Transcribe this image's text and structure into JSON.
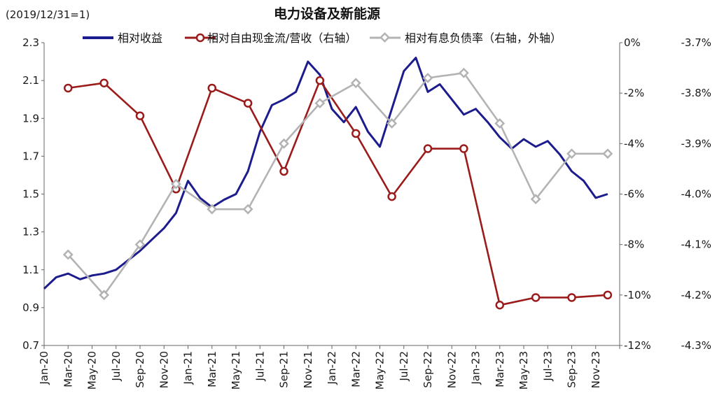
{
  "chart_data": {
    "type": "line",
    "title": "电力设备及新能源",
    "subtitle": "(2019/12/31=1)",
    "left_axis": {
      "ylim": [
        0.7,
        2.3
      ],
      "ticks": [
        0.7,
        0.9,
        1.1,
        1.3,
        1.5,
        1.7,
        1.9,
        2.1,
        2.3
      ]
    },
    "right_axis": {
      "ylim": [
        -12,
        0
      ],
      "ticks": [
        -12,
        -10,
        -8,
        -6,
        -4,
        -2,
        0
      ],
      "tick_labels": [
        "-12%",
        "-10%",
        "-8%",
        "-6%",
        "-4%",
        "-2%",
        "0%"
      ]
    },
    "outer_axis": {
      "ylim": [
        -4.3,
        -3.7
      ],
      "ticks": [
        -4.3,
        -4.2,
        -4.1,
        -4.0,
        -3.9,
        -3.8,
        -3.7
      ],
      "tick_labels": [
        "-4.3%",
        "-4.2%",
        "-4.1%",
        "-4.0%",
        "-3.9%",
        "-3.8%",
        "-3.7%"
      ]
    },
    "x_axis": {
      "range": [
        "2020-01",
        "2024-01"
      ],
      "tick_labels": [
        "Jan-20",
        "Mar-20",
        "May-20",
        "Jul-20",
        "Sep-20",
        "Nov-20",
        "Jan-21",
        "Mar-21",
        "May-21",
        "Jul-21",
        "Sep-21",
        "Nov-21",
        "Jan-22",
        "Mar-22",
        "May-22",
        "Jul-22",
        "Sep-22",
        "Nov-22",
        "Jan-23",
        "Mar-23",
        "May-23",
        "Jul-23",
        "Sep-23",
        "Nov-23"
      ]
    },
    "grid": false,
    "legend_position": "top",
    "series": [
      {
        "name": "相对收益",
        "axis": "left",
        "color": "#1c1c8e",
        "x": [
          "2020-01",
          "2020-02",
          "2020-03",
          "2020-04",
          "2020-05",
          "2020-06",
          "2020-07",
          "2020-08",
          "2020-09",
          "2020-10",
          "2020-11",
          "2020-12",
          "2021-01",
          "2021-02",
          "2021-03",
          "2021-04",
          "2021-05",
          "2021-06",
          "2021-07",
          "2021-08",
          "2021-09",
          "2021-10",
          "2021-11",
          "2021-12",
          "2022-01",
          "2022-02",
          "2022-03",
          "2022-04",
          "2022-05",
          "2022-06",
          "2022-07",
          "2022-08",
          "2022-09",
          "2022-10",
          "2022-11",
          "2022-12",
          "2023-01",
          "2023-02",
          "2023-03",
          "2023-04",
          "2023-05",
          "2023-06",
          "2023-07",
          "2023-08",
          "2023-09",
          "2023-10",
          "2023-11",
          "2023-12"
        ],
        "values": [
          1.0,
          1.06,
          1.08,
          1.05,
          1.07,
          1.08,
          1.1,
          1.15,
          1.2,
          1.26,
          1.32,
          1.4,
          1.57,
          1.48,
          1.43,
          1.47,
          1.5,
          1.62,
          1.83,
          1.97,
          2.0,
          2.04,
          2.2,
          2.13,
          1.95,
          1.88,
          1.96,
          1.83,
          1.75,
          1.95,
          2.15,
          2.22,
          2.04,
          2.08,
          2.0,
          1.92,
          1.95,
          1.88,
          1.8,
          1.74,
          1.79,
          1.75,
          1.78,
          1.71,
          1.62,
          1.57,
          1.48,
          1.5
        ]
      },
      {
        "name": "相对自由现金流/营收（右轴）",
        "axis": "right",
        "color": "#9b1b1b",
        "x": [
          "2020-03",
          "2020-06",
          "2020-09",
          "2020-12",
          "2021-03",
          "2021-06",
          "2021-09",
          "2021-12",
          "2022-03",
          "2022-06",
          "2022-09",
          "2022-12",
          "2023-03",
          "2023-06",
          "2023-09",
          "2023-12"
        ],
        "values": [
          -1.8,
          -1.6,
          -2.9,
          -5.8,
          -1.8,
          -2.4,
          -5.1,
          -1.5,
          -3.6,
          -6.1,
          -4.2,
          -4.2,
          -10.4,
          -10.1,
          -10.1,
          -10.0
        ]
      },
      {
        "name": "相对有息负债率（右轴，外轴）",
        "axis": "outer",
        "color": "#b3b3b3",
        "x": [
          "2020-03",
          "2020-06",
          "2020-09",
          "2020-12",
          "2021-03",
          "2021-06",
          "2021-09",
          "2021-12",
          "2022-03",
          "2022-06",
          "2022-09",
          "2022-12",
          "2023-03",
          "2023-06",
          "2023-09",
          "2023-12"
        ],
        "values": [
          -4.12,
          -4.2,
          -4.1,
          -3.98,
          -4.03,
          -4.03,
          -3.9,
          -3.82,
          -3.78,
          -3.86,
          -3.77,
          -3.76,
          -3.86,
          -4.01,
          -3.92,
          -3.92
        ]
      }
    ]
  }
}
